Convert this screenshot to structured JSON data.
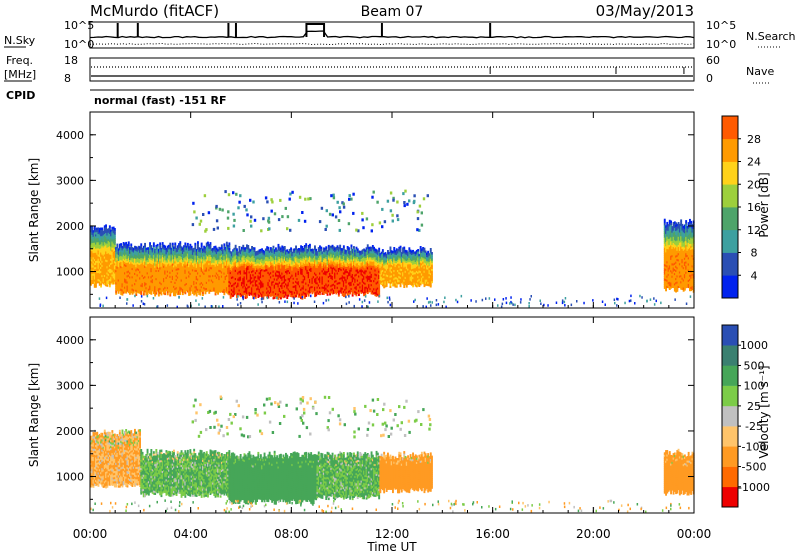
{
  "header": {
    "station": "McMurdo (fitACF)",
    "beam": "Beam 07",
    "date": "03/May/2013"
  },
  "noise_panel": {
    "left_label": "N.Sky",
    "right_label": "N.Search",
    "left_ticks": [
      "10^5",
      "10^0"
    ],
    "right_ticks": [
      "10^5",
      "10^0"
    ]
  },
  "freq_panel": {
    "left_label_1": "Freq.",
    "left_label_2": "[MHz]",
    "left_ticks": [
      "18",
      "8"
    ],
    "right_label": "Nave",
    "right_ticks": [
      "60",
      "0"
    ]
  },
  "cpid": {
    "label": "CPID",
    "value": "normal (fast) -151 RF"
  },
  "colors": {
    "power_scale": [
      "#0022ee",
      "#2a4fb4",
      "#3da0a0",
      "#4ea46a",
      "#9dcf3c",
      "#ffd21a",
      "#ff9a00",
      "#ff5a00",
      "#ee0000"
    ],
    "velocity_scale": [
      "#ee0000",
      "#ff6a00",
      "#ff9a22",
      "#ffc46a",
      "#c0c0c0",
      "#7ccc48",
      "#46a658",
      "#3a8070",
      "#2a4fb4"
    ]
  },
  "chart_data": [
    {
      "type": "heatmap",
      "name": "power",
      "xlabel": "",
      "ylabel": "Slant Range [km]",
      "xlim": [
        "00:00",
        "24:00"
      ],
      "ylim": [
        200,
        4500
      ],
      "y_ticks": [
        "1000",
        "2000",
        "3000",
        "4000"
      ],
      "colorbar": {
        "label": "Power [dB]",
        "ticks": [
          "4",
          "8",
          "12",
          "16",
          "20",
          "24",
          "28"
        ],
        "range": [
          0,
          32
        ]
      },
      "echo_bands": [
        {
          "t_start": 0.0,
          "t_end": 1.0,
          "range_low": 700,
          "range_high": 1950,
          "power": 22
        },
        {
          "t_start": 1.0,
          "t_end": 5.5,
          "range_low": 520,
          "range_high": 1550,
          "power": 24
        },
        {
          "t_start": 5.5,
          "t_end": 8.5,
          "range_low": 450,
          "range_high": 1500,
          "power": 28
        },
        {
          "t_start": 8.5,
          "t_end": 11.5,
          "range_low": 500,
          "range_high": 1500,
          "power": 28
        },
        {
          "t_start": 11.5,
          "t_end": 13.6,
          "range_low": 700,
          "range_high": 1450,
          "power": 22
        },
        {
          "t_start": 22.8,
          "t_end": 24.0,
          "range_low": 600,
          "range_high": 2050,
          "power": 24
        }
      ]
    },
    {
      "type": "heatmap",
      "name": "velocity",
      "xlabel": "Time UT",
      "ylabel": "Slant Range [km]",
      "xlim": [
        "00:00",
        "24:00"
      ],
      "ylim": [
        200,
        4500
      ],
      "x_ticks": [
        "00:00",
        "04:00",
        "08:00",
        "12:00",
        "16:00",
        "20:00",
        "00:00"
      ],
      "y_ticks": [
        "1000",
        "2000",
        "3000",
        "4000"
      ],
      "colorbar": {
        "label": "Velocity [m s⁻¹]",
        "ticks": [
          "-1000",
          "-500",
          "-100",
          "-25",
          "25",
          "100",
          "500",
          "1000"
        ]
      },
      "echo_bands": [
        {
          "t_start": 0.0,
          "t_end": 2.0,
          "range_low": 800,
          "range_high": 1950,
          "velocity": -100
        },
        {
          "t_start": 2.0,
          "t_end": 5.5,
          "range_low": 600,
          "range_high": 1500,
          "velocity": 100
        },
        {
          "t_start": 5.5,
          "t_end": 9.0,
          "range_low": 450,
          "range_high": 1450,
          "velocity": 200
        },
        {
          "t_start": 9.0,
          "t_end": 11.5,
          "range_low": 550,
          "range_high": 1450,
          "velocity": 100
        },
        {
          "t_start": 11.5,
          "t_end": 13.6,
          "range_low": 700,
          "range_high": 1450,
          "velocity": -200
        },
        {
          "t_start": 22.8,
          "t_end": 24.0,
          "range_low": 650,
          "range_high": 1500,
          "velocity": -200
        }
      ]
    }
  ]
}
